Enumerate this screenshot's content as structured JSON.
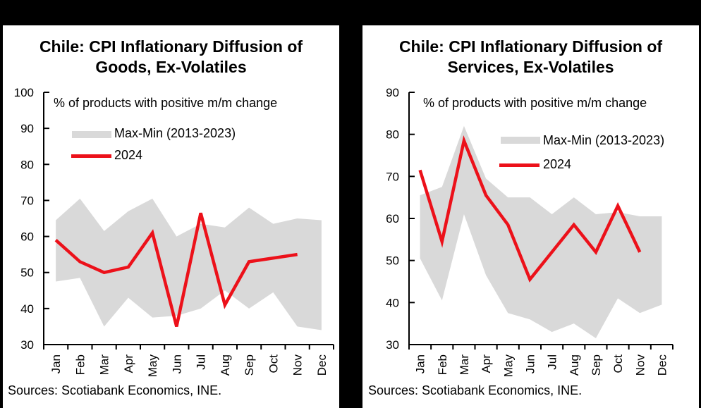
{
  "colors": {
    "background": "#000000",
    "panel": "#ffffff",
    "band": "#d9d9d9",
    "line_2024": "#ec111a",
    "axis": "#000000",
    "text": "#000000"
  },
  "panels": [
    {
      "title_line1": "Chile: CPI Inflationary Diffusion of",
      "title_line2": "Goods, Ex-Volatiles",
      "annotation": "% of products with positive m/m change",
      "legend": {
        "band_label": "Max-Min (2013-2023)",
        "line_label": "2024"
      },
      "sources": "Sources: Scotiabank Economics, INE."
    },
    {
      "title_line1": "Chile: CPI Inflationary Diffusion of",
      "title_line2": "Services, Ex-Volatiles",
      "annotation": "% of products with positive m/m change",
      "legend": {
        "band_label": "Max-Min (2013-2023)",
        "line_label": "2024"
      },
      "sources": "Sources: Scotiabank Economics, INE."
    }
  ],
  "chart_data": [
    {
      "type": "area",
      "title": "Chile: CPI Inflationary Diffusion of Goods, Ex-Volatiles",
      "annotation": "% of products with positive m/m change",
      "categories": [
        "Jan",
        "Feb",
        "Mar",
        "Apr",
        "May",
        "Jun",
        "Jul",
        "Aug",
        "Sep",
        "Oct",
        "Nov",
        "Dec"
      ],
      "series": [
        {
          "name": "Max (2013-2023)",
          "role": "band_max",
          "values": [
            64.5,
            70.5,
            61.5,
            67,
            70.5,
            60,
            63.5,
            62.5,
            68,
            63.5,
            65,
            64.5
          ]
        },
        {
          "name": "Min (2013-2023)",
          "role": "band_min",
          "values": [
            47.5,
            48.5,
            35,
            43,
            37.5,
            38,
            40,
            45,
            40,
            44.5,
            35,
            34
          ]
        },
        {
          "name": "2024",
          "role": "line",
          "values": [
            59,
            53,
            50,
            51.5,
            61,
            35,
            66.5,
            41,
            53,
            54,
            55,
            null
          ]
        }
      ],
      "ylim": [
        30,
        100
      ],
      "yticks": [
        100,
        90,
        80,
        70,
        60,
        50,
        40,
        30
      ],
      "grid": false,
      "legend_position": "inside-top-left"
    },
    {
      "type": "area",
      "title": "Chile: CPI Inflationary Diffusion of Services, Ex-Volatiles",
      "annotation": "% of products with positive m/m change",
      "categories": [
        "Jan",
        "Feb",
        "Mar",
        "Apr",
        "May",
        "Jun",
        "Jul",
        "Aug",
        "Sep",
        "Oct",
        "Nov",
        "Dec"
      ],
      "series": [
        {
          "name": "Max (2013-2023)",
          "role": "band_max",
          "values": [
            65.5,
            67.5,
            82,
            69.5,
            65,
            65,
            61,
            65,
            61,
            61.5,
            60.5,
            60.5
          ]
        },
        {
          "name": "Min (2013-2023)",
          "role": "band_min",
          "values": [
            50.5,
            40.5,
            61,
            46.5,
            37.5,
            36,
            33,
            35,
            31.5,
            41,
            37.5,
            39.5
          ]
        },
        {
          "name": "2024",
          "role": "line",
          "values": [
            71.5,
            54.5,
            78.5,
            65.5,
            58.5,
            45.5,
            52,
            58.5,
            52,
            63,
            52,
            null
          ]
        }
      ],
      "ylim": [
        30,
        90
      ],
      "yticks": [
        90,
        80,
        70,
        60,
        50,
        40,
        30
      ],
      "grid": false,
      "legend_position": "inside-top-right"
    }
  ]
}
